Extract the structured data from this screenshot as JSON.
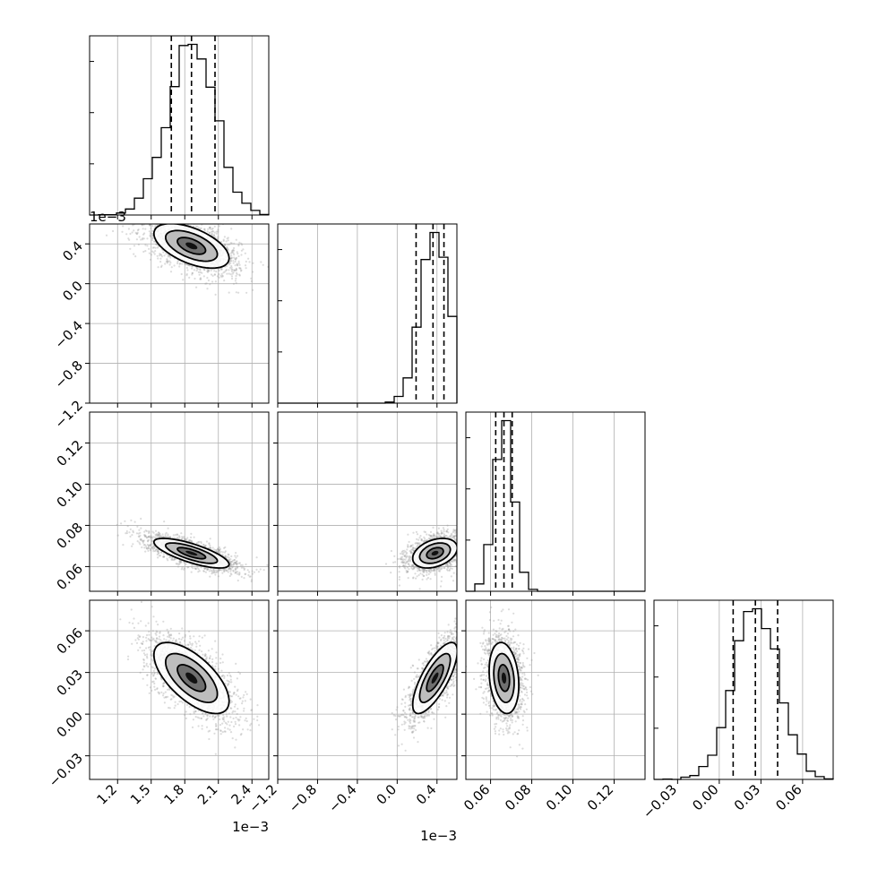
{
  "chart_data": {
    "type": "corner",
    "parameters": [
      {
        "id": "p0",
        "range": [
          0.95,
          2.55
        ],
        "offset_text": "1e−3",
        "ticks": [
          1.2,
          1.5,
          1.8,
          2.1,
          2.4
        ],
        "tick_labels": [
          "1.2",
          "1.5",
          "1.8",
          "2.1",
          "2.4"
        ],
        "quantiles": [
          1.68,
          1.86,
          2.07
        ],
        "center": 1.86,
        "sd": 0.21
      },
      {
        "id": "p1",
        "range": [
          -1.2,
          0.6
        ],
        "offset_text": "1e−3",
        "ticks": [
          -1.2,
          -0.8,
          -0.4,
          0.0,
          0.4
        ],
        "tick_labels": [
          "−1.2",
          "−0.8",
          "−0.4",
          "0.0",
          "0.4"
        ],
        "quantiles": [
          0.19,
          0.36,
          0.47
        ],
        "center": 0.38,
        "sd": 0.14
      },
      {
        "id": "p2",
        "range": [
          0.048,
          0.135
        ],
        "offset_text": "",
        "ticks": [
          0.06,
          0.08,
          0.1,
          0.12
        ],
        "tick_labels": [
          "0.06",
          "0.08",
          "0.10",
          "0.12"
        ],
        "quantiles": [
          0.0625,
          0.0665,
          0.0705
        ],
        "center": 0.0665,
        "sd": 0.0045
      },
      {
        "id": "p3",
        "range": [
          -0.047,
          0.082
        ],
        "offset_text": "",
        "ticks": [
          -0.03,
          0.0,
          0.03,
          0.06
        ],
        "tick_labels": [
          "−0.03",
          "0.00",
          "0.03",
          "0.06"
        ],
        "quantiles": [
          0.01,
          0.026,
          0.042
        ],
        "center": 0.026,
        "sd": 0.016
      }
    ],
    "correlations": [
      [
        1,
        -0.55,
        -0.75,
        -0.65
      ],
      [
        -0.55,
        1,
        0.35,
        0.75
      ],
      [
        -0.75,
        0.35,
        1,
        -0.2
      ],
      [
        -0.65,
        0.75,
        -0.2,
        1
      ]
    ],
    "grid": true,
    "colors": {
      "samples": "#9a9a9a",
      "contours": "#000000",
      "quantile_lines": "#000000"
    }
  }
}
